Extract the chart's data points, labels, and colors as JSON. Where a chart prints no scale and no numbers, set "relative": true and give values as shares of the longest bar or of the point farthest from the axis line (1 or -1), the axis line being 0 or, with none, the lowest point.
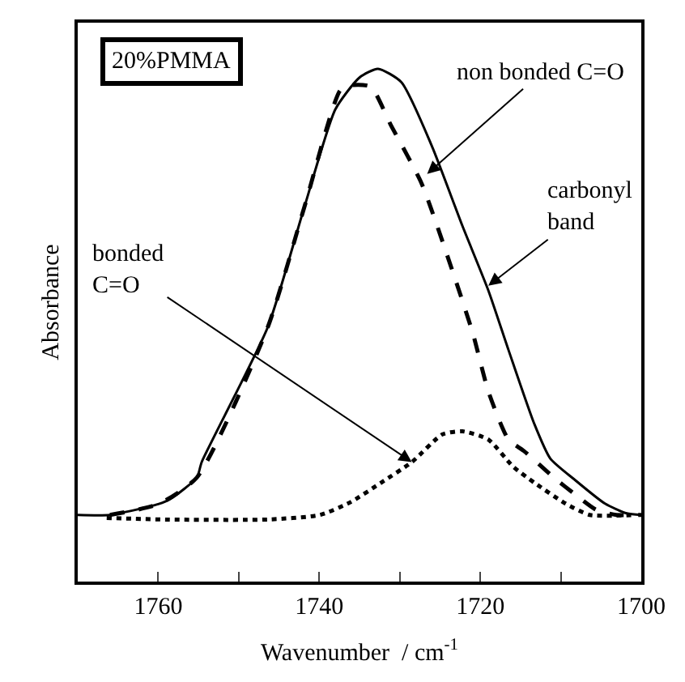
{
  "chart_data": {
    "type": "line",
    "title": "20%PMMA",
    "xlabel": "Wavenumber  / cm$^{-1}$",
    "ylabel": "Absorbance",
    "relative": true,
    "xlim": [
      1770,
      1700
    ],
    "xticks": [
      1760,
      {
        "value": 1750,
        "label": null
      },
      1740,
      {
        "value": 1730,
        "label": null
      },
      1720,
      {
        "value": 1710,
        "label": null
      },
      1700
    ],
    "series": [
      {
        "color": "#000000",
        "line_style": "solid",
        "x": [
          1770,
          1766,
          1760,
          1758.4,
          1755.2,
          1754.6,
          1746.4,
          1741.8,
          1738,
          1735,
          1732.7,
          1729.8,
          1726,
          1722.2,
          1719,
          1716.5,
          1713.3,
          1711.3,
          1708.3,
          1704.5,
          1701.8,
          1700
        ],
        "values": [
          0.13,
          0.13,
          0.151,
          0.162,
          0.203,
          0.233,
          0.496,
          0.733,
          0.921,
          0.983,
          1,
          0.974,
          0.849,
          0.693,
          0.568,
          0.452,
          0.308,
          0.24,
          0.199,
          0.152,
          0.133,
          0.13
        ]
      },
      {
        "color": "#000000",
        "line_style": "dashed",
        "x": [
          1766,
          1760,
          1755.2,
          1746.4,
          1741.8,
          1737.4,
          1736.1,
          1733.6,
          1731.1,
          1727.3,
          1723.5,
          1720.9,
          1719,
          1716.5,
          1714.6,
          1710.8,
          1708.3,
          1705.6,
          1703.1,
          1700
        ],
        "values": [
          0.13,
          0.151,
          0.203,
          0.496,
          0.733,
          0.958,
          0.968,
          0.965,
          0.89,
          0.777,
          0.608,
          0.483,
          0.371,
          0.277,
          0.255,
          0.202,
          0.171,
          0.14,
          0.13,
          0.13
        ]
      },
      {
        "color": "#000000",
        "line_style": "dotted",
        "x": [
          1766.4,
          1759,
          1746.4,
          1739.9,
          1736.1,
          1732.3,
          1728.5,
          1724.7,
          1722.2,
          1719,
          1715.9,
          1713.3,
          1709.4,
          1706.4,
          1700.7
        ],
        "values": [
          0.124,
          0.121,
          0.121,
          0.13,
          0.155,
          0.193,
          0.233,
          0.287,
          0.293,
          0.277,
          0.224,
          0.193,
          0.152,
          0.13,
          0.13
        ]
      }
    ],
    "annotations": [
      {
        "text": "non bonded C=O",
        "x": 1726.6,
        "y": 0.795
      },
      {
        "text": "carbonyl\nband",
        "x": 1719,
        "y": 0.577
      },
      {
        "text": "bonded\nC=O",
        "x": 1728.5,
        "y": 0.233
      }
    ]
  }
}
